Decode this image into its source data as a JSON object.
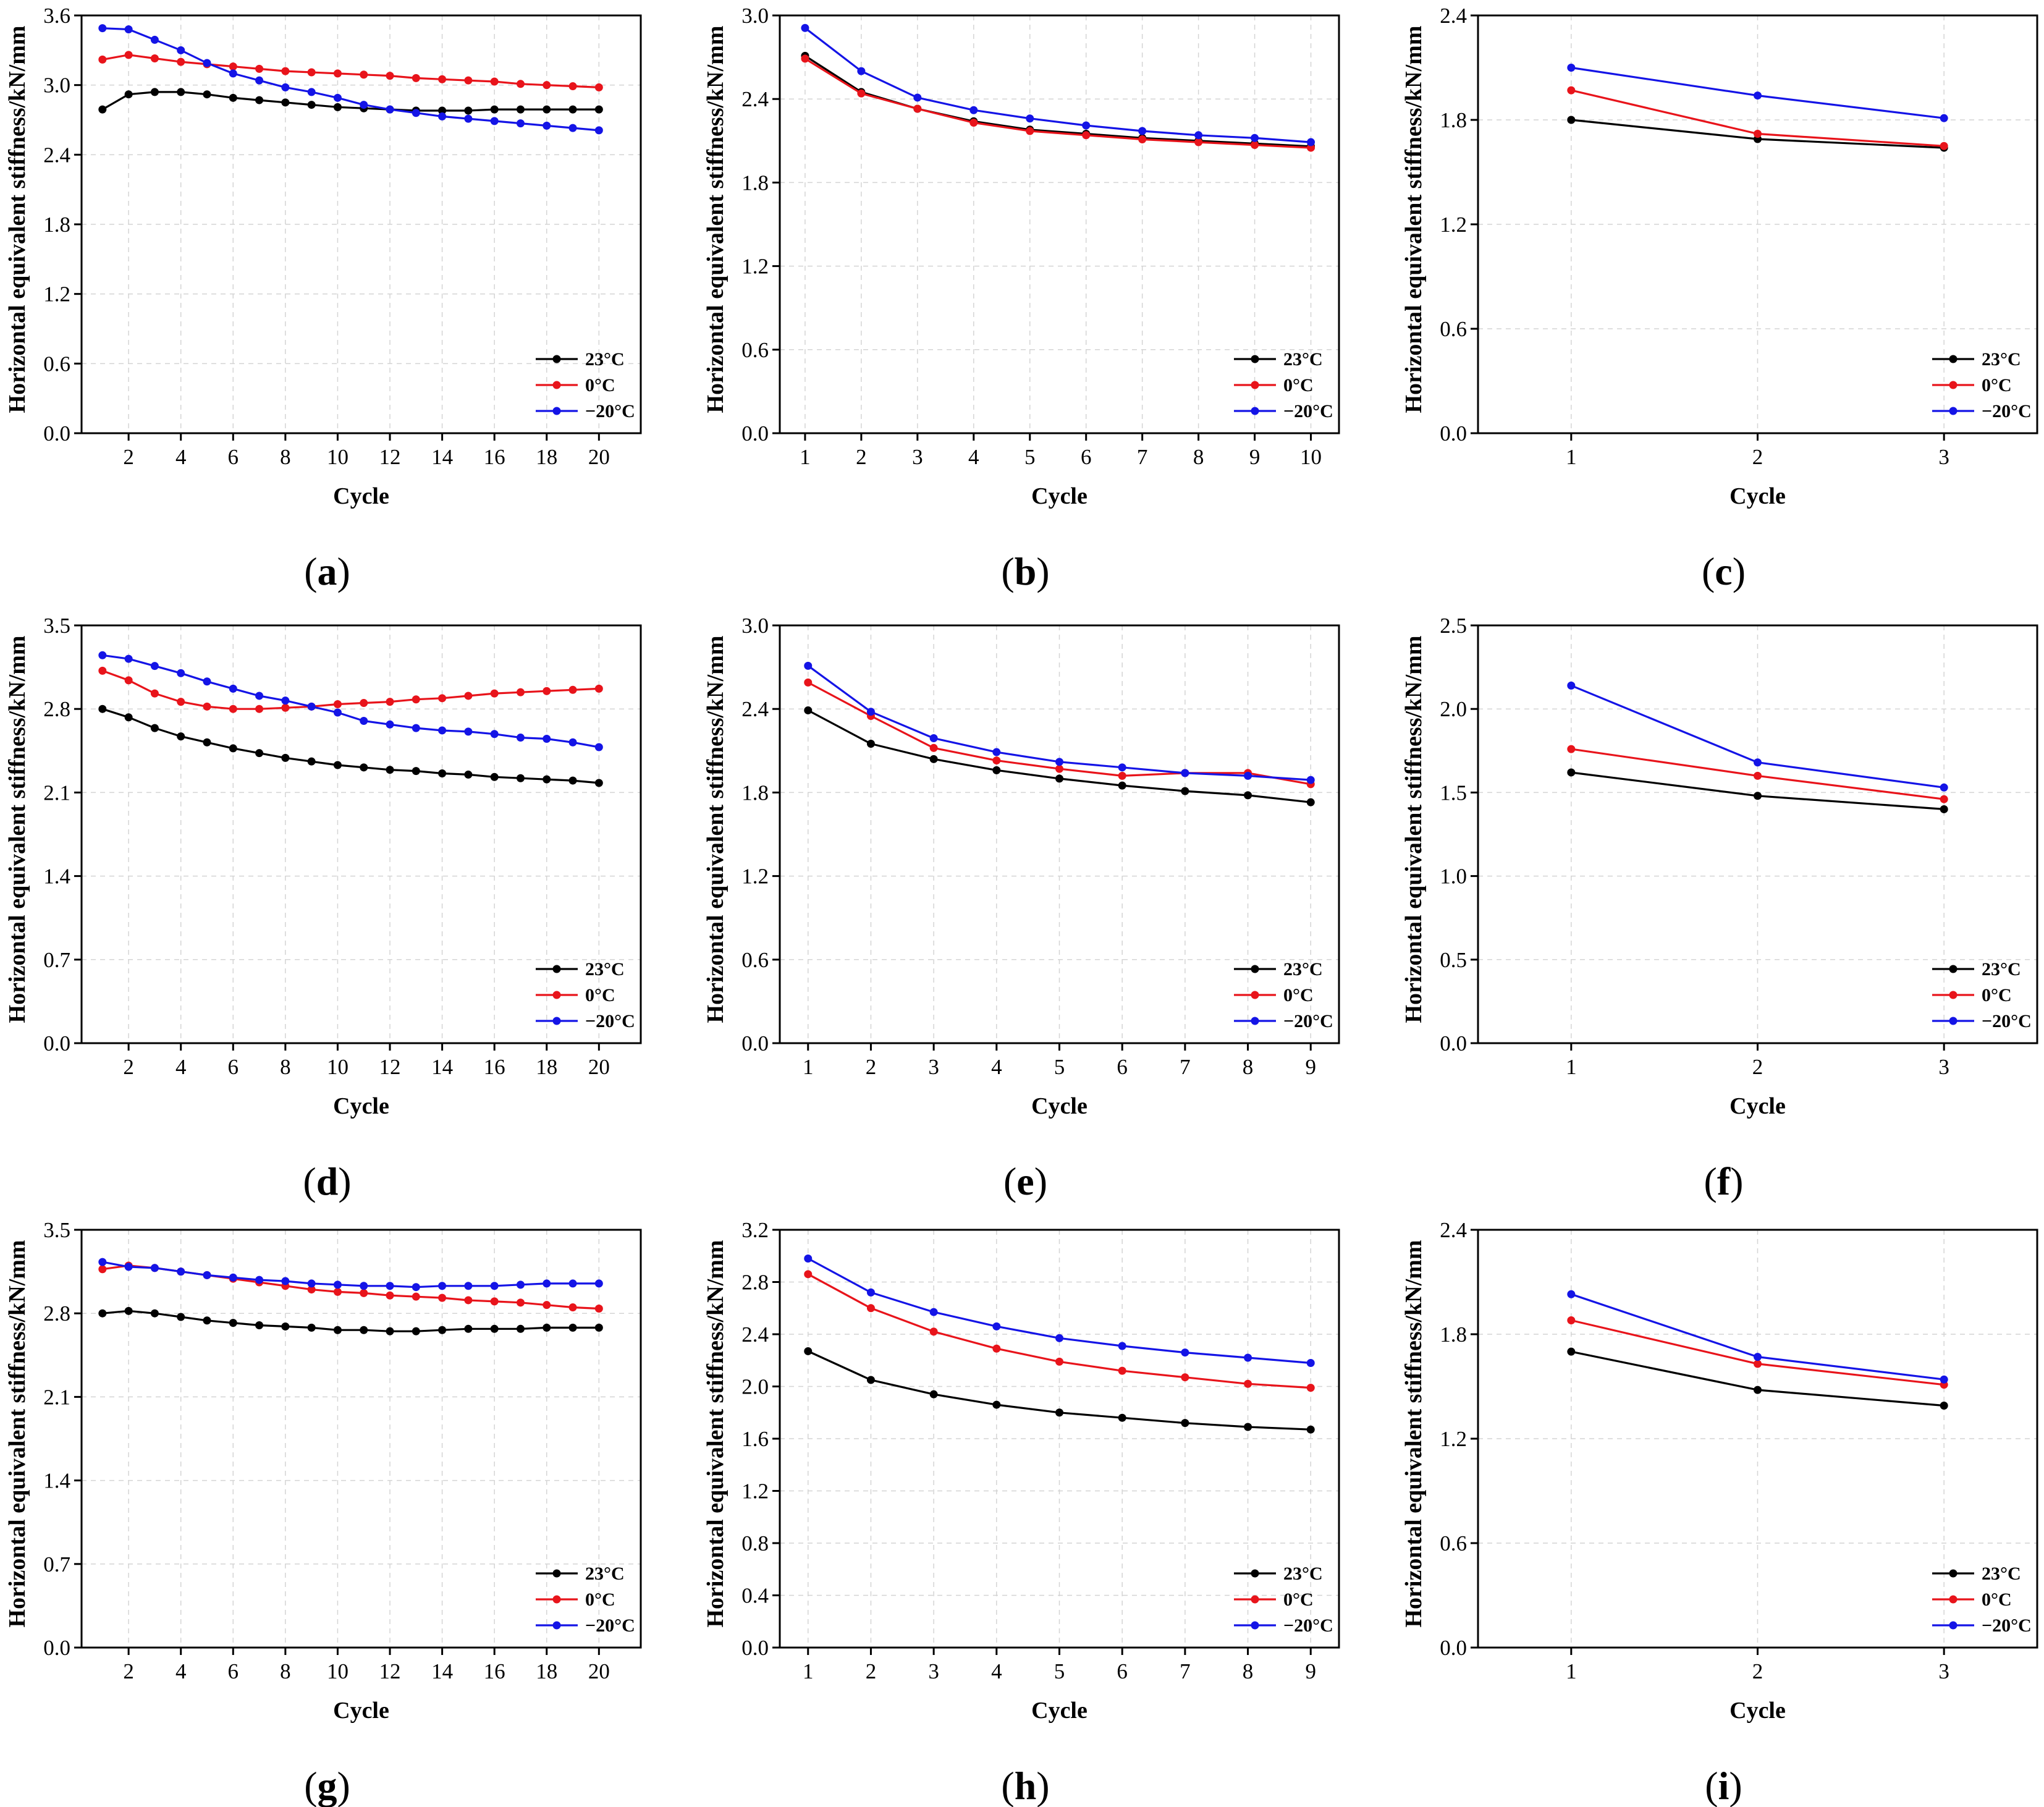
{
  "colors": {
    "23C": "#000000",
    "0C": "#e8141b",
    "-20C": "#1414e6"
  },
  "chart_data": [
    {
      "panel": "a",
      "type": "line",
      "xlabel": "Cycle",
      "ylabel": "Horizontal equivalent stiffness/kN/mm",
      "xlim": [
        0.2,
        21.6
      ],
      "ylim": [
        0,
        3.6
      ],
      "xticks": [
        2,
        4,
        6,
        8,
        10,
        12,
        14,
        16,
        18,
        20
      ],
      "yticks": [
        0.0,
        0.6,
        1.2,
        1.8,
        2.4,
        3.0,
        3.6
      ],
      "ytick_decimals": 1,
      "grid": true,
      "legend": "bottom-right",
      "x": [
        1,
        2,
        3,
        4,
        5,
        6,
        7,
        8,
        9,
        10,
        11,
        12,
        13,
        14,
        15,
        16,
        17,
        18,
        19,
        20
      ],
      "series": [
        {
          "name": "23°C",
          "color_key": "23C",
          "values": [
            2.79,
            2.92,
            2.94,
            2.94,
            2.92,
            2.89,
            2.87,
            2.85,
            2.83,
            2.81,
            2.8,
            2.79,
            2.78,
            2.78,
            2.78,
            2.79,
            2.79,
            2.79,
            2.79,
            2.79
          ]
        },
        {
          "name": "0°C",
          "color_key": "0C",
          "values": [
            3.22,
            3.26,
            3.23,
            3.2,
            3.18,
            3.16,
            3.14,
            3.12,
            3.11,
            3.1,
            3.09,
            3.08,
            3.06,
            3.05,
            3.04,
            3.03,
            3.01,
            3.0,
            2.99,
            2.98
          ]
        },
        {
          "name": "−20°C",
          "color_key": "-20C",
          "values": [
            3.49,
            3.48,
            3.39,
            3.3,
            3.19,
            3.1,
            3.04,
            2.98,
            2.94,
            2.89,
            2.83,
            2.79,
            2.76,
            2.73,
            2.71,
            2.69,
            2.67,
            2.65,
            2.63,
            2.61
          ]
        }
      ]
    },
    {
      "panel": "b",
      "type": "line",
      "xlabel": "Cycle",
      "ylabel": "Horizontal equivalent stiffness/kN/mm",
      "xlim": [
        0.55,
        10.5
      ],
      "ylim": [
        0,
        3.0
      ],
      "xticks": [
        1,
        2,
        3,
        4,
        5,
        6,
        7,
        8,
        9,
        10
      ],
      "yticks": [
        0.0,
        0.6,
        1.2,
        1.8,
        2.4,
        3.0
      ],
      "ytick_decimals": 1,
      "grid": true,
      "legend": "bottom-right",
      "x": [
        1,
        2,
        3,
        4,
        5,
        6,
        7,
        8,
        9,
        10
      ],
      "series": [
        {
          "name": "23°C",
          "color_key": "23C",
          "values": [
            2.71,
            2.45,
            2.33,
            2.24,
            2.18,
            2.15,
            2.12,
            2.1,
            2.08,
            2.06
          ]
        },
        {
          "name": "0°C",
          "color_key": "0C",
          "values": [
            2.69,
            2.44,
            2.33,
            2.23,
            2.17,
            2.14,
            2.11,
            2.09,
            2.07,
            2.05
          ]
        },
        {
          "name": "−20°C",
          "color_key": "-20C",
          "values": [
            2.91,
            2.6,
            2.41,
            2.32,
            2.26,
            2.21,
            2.17,
            2.14,
            2.12,
            2.09
          ]
        }
      ]
    },
    {
      "panel": "c",
      "type": "line",
      "xlabel": "Cycle",
      "ylabel": "Horizontal equivalent stiffness/kN/mm",
      "xlim": [
        0.5,
        3.5
      ],
      "ylim": [
        0,
        2.4
      ],
      "xticks": [
        1,
        2,
        3
      ],
      "yticks": [
        0.0,
        0.6,
        1.2,
        1.8,
        2.4
      ],
      "ytick_decimals": 1,
      "grid": true,
      "legend": "bottom-right",
      "x": [
        1,
        2,
        3
      ],
      "series": [
        {
          "name": "23°C",
          "color_key": "23C",
          "values": [
            1.8,
            1.69,
            1.64
          ]
        },
        {
          "name": "0°C",
          "color_key": "0C",
          "values": [
            1.97,
            1.72,
            1.65
          ]
        },
        {
          "name": "−20°C",
          "color_key": "-20C",
          "values": [
            2.1,
            1.94,
            1.81
          ]
        }
      ]
    },
    {
      "panel": "d",
      "type": "line",
      "xlabel": "Cycle",
      "ylabel": "Horizontal equivalent stiffness/kN/mm",
      "xlim": [
        0.2,
        21.6
      ],
      "ylim": [
        0,
        3.5
      ],
      "xticks": [
        2,
        4,
        6,
        8,
        10,
        12,
        14,
        16,
        18,
        20
      ],
      "yticks": [
        0.0,
        0.7,
        1.4,
        2.1,
        2.8,
        3.5
      ],
      "ytick_decimals": 1,
      "grid": true,
      "legend": "bottom-right",
      "x": [
        1,
        2,
        3,
        4,
        5,
        6,
        7,
        8,
        9,
        10,
        11,
        12,
        13,
        14,
        15,
        16,
        17,
        18,
        19,
        20
      ],
      "series": [
        {
          "name": "23°C",
          "color_key": "23C",
          "values": [
            2.8,
            2.73,
            2.64,
            2.57,
            2.52,
            2.47,
            2.43,
            2.39,
            2.36,
            2.33,
            2.31,
            2.29,
            2.28,
            2.26,
            2.25,
            2.23,
            2.22,
            2.21,
            2.2,
            2.18
          ]
        },
        {
          "name": "0°C",
          "color_key": "0C",
          "values": [
            3.12,
            3.04,
            2.93,
            2.86,
            2.82,
            2.8,
            2.8,
            2.81,
            2.82,
            2.84,
            2.85,
            2.86,
            2.88,
            2.89,
            2.91,
            2.93,
            2.94,
            2.95,
            2.96,
            2.97
          ]
        },
        {
          "name": "−20°C",
          "color_key": "-20C",
          "values": [
            3.25,
            3.22,
            3.16,
            3.1,
            3.03,
            2.97,
            2.91,
            2.87,
            2.82,
            2.77,
            2.7,
            2.67,
            2.64,
            2.62,
            2.61,
            2.59,
            2.56,
            2.55,
            2.52,
            2.48
          ]
        }
      ]
    },
    {
      "panel": "e",
      "type": "line",
      "xlabel": "Cycle",
      "ylabel": "Horizontal equivalent stiffness/kN/mm",
      "xlim": [
        0.55,
        9.45
      ],
      "ylim": [
        0,
        3.0
      ],
      "xticks": [
        1,
        2,
        3,
        4,
        5,
        6,
        7,
        8,
        9
      ],
      "yticks": [
        0.0,
        0.6,
        1.2,
        1.8,
        2.4,
        3.0
      ],
      "ytick_decimals": 1,
      "grid": true,
      "legend": "bottom-right",
      "x": [
        1,
        2,
        3,
        4,
        5,
        6,
        7,
        8,
        9
      ],
      "series": [
        {
          "name": "23°C",
          "color_key": "23C",
          "values": [
            2.39,
            2.15,
            2.04,
            1.96,
            1.9,
            1.85,
            1.81,
            1.78,
            1.73
          ]
        },
        {
          "name": "0°C",
          "color_key": "0C",
          "values": [
            2.59,
            2.35,
            2.12,
            2.03,
            1.97,
            1.92,
            1.94,
            1.94,
            1.86
          ]
        },
        {
          "name": "−20°C",
          "color_key": "-20C",
          "values": [
            2.71,
            2.38,
            2.19,
            2.09,
            2.02,
            1.98,
            1.94,
            1.92,
            1.89
          ]
        }
      ]
    },
    {
      "panel": "f",
      "type": "line",
      "xlabel": "Cycle",
      "ylabel": "Horizontal equivalent stiffness/kN/mm",
      "xlim": [
        0.5,
        3.5
      ],
      "ylim": [
        0,
        2.5
      ],
      "xticks": [
        1,
        2,
        3
      ],
      "yticks": [
        0.0,
        0.5,
        1.0,
        1.5,
        2.0,
        2.5
      ],
      "ytick_decimals": 1,
      "grid": true,
      "legend": "bottom-right",
      "x": [
        1,
        2,
        3
      ],
      "series": [
        {
          "name": "23°C",
          "color_key": "23C",
          "values": [
            1.62,
            1.48,
            1.4
          ]
        },
        {
          "name": "0°C",
          "color_key": "0C",
          "values": [
            1.76,
            1.6,
            1.46
          ]
        },
        {
          "name": "−20°C",
          "color_key": "-20C",
          "values": [
            2.14,
            1.68,
            1.53
          ]
        }
      ]
    },
    {
      "panel": "g",
      "type": "line",
      "xlabel": "Cycle",
      "ylabel": "Horizontal equivalent stiffness/kN/mm",
      "xlim": [
        0.2,
        21.6
      ],
      "ylim": [
        0,
        3.5
      ],
      "xticks": [
        2,
        4,
        6,
        8,
        10,
        12,
        14,
        16,
        18,
        20
      ],
      "yticks": [
        0.0,
        0.7,
        1.4,
        2.1,
        2.8,
        3.5
      ],
      "ytick_decimals": 1,
      "grid": true,
      "legend": "bottom-right",
      "x": [
        1,
        2,
        3,
        4,
        5,
        6,
        7,
        8,
        9,
        10,
        11,
        12,
        13,
        14,
        15,
        16,
        17,
        18,
        19,
        20
      ],
      "series": [
        {
          "name": "23°C",
          "color_key": "23C",
          "values": [
            2.8,
            2.82,
            2.8,
            2.77,
            2.74,
            2.72,
            2.7,
            2.69,
            2.68,
            2.66,
            2.66,
            2.65,
            2.65,
            2.66,
            2.67,
            2.67,
            2.67,
            2.68,
            2.68,
            2.68
          ]
        },
        {
          "name": "0°C",
          "color_key": "0C",
          "values": [
            3.17,
            3.2,
            3.18,
            3.15,
            3.12,
            3.09,
            3.06,
            3.03,
            3.0,
            2.98,
            2.97,
            2.95,
            2.94,
            2.93,
            2.91,
            2.9,
            2.89,
            2.87,
            2.85,
            2.84
          ]
        },
        {
          "name": "−20°C",
          "color_key": "-20C",
          "values": [
            3.23,
            3.19,
            3.18,
            3.15,
            3.12,
            3.1,
            3.08,
            3.07,
            3.05,
            3.04,
            3.03,
            3.03,
            3.02,
            3.03,
            3.03,
            3.03,
            3.04,
            3.05,
            3.05,
            3.05
          ]
        }
      ]
    },
    {
      "panel": "h",
      "type": "line",
      "xlabel": "Cycle",
      "ylabel": "Horizontal equivalent stiffness/kN/mm",
      "xlim": [
        0.55,
        9.45
      ],
      "ylim": [
        0,
        3.2
      ],
      "xticks": [
        1,
        2,
        3,
        4,
        5,
        6,
        7,
        8,
        9
      ],
      "yticks": [
        0.0,
        0.4,
        0.8,
        1.2,
        1.6,
        2.0,
        2.4,
        2.8,
        3.2
      ],
      "ytick_decimals": 1,
      "grid": true,
      "legend": "bottom-right",
      "x": [
        1,
        2,
        3,
        4,
        5,
        6,
        7,
        8,
        9
      ],
      "series": [
        {
          "name": "23°C",
          "color_key": "23C",
          "values": [
            2.27,
            2.05,
            1.94,
            1.86,
            1.8,
            1.76,
            1.72,
            1.69,
            1.67
          ]
        },
        {
          "name": "0°C",
          "color_key": "0C",
          "values": [
            2.86,
            2.6,
            2.42,
            2.29,
            2.19,
            2.12,
            2.07,
            2.02,
            1.99
          ]
        },
        {
          "name": "−20°C",
          "color_key": "-20C",
          "values": [
            2.98,
            2.72,
            2.57,
            2.46,
            2.37,
            2.31,
            2.26,
            2.22,
            2.18
          ]
        }
      ]
    },
    {
      "panel": "i",
      "type": "line",
      "xlabel": "Cycle",
      "ylabel": "Horizontal equivalent stiffness/kN/mm",
      "xlim": [
        0.5,
        3.5
      ],
      "ylim": [
        0,
        2.4
      ],
      "xticks": [
        1,
        2,
        3
      ],
      "yticks": [
        0.0,
        0.6,
        1.2,
        1.8,
        2.4
      ],
      "ytick_decimals": 1,
      "grid": true,
      "legend": "bottom-right",
      "x": [
        1,
        2,
        3
      ],
      "series": [
        {
          "name": "23°C",
          "color_key": "23C",
          "values": [
            1.7,
            1.48,
            1.39
          ]
        },
        {
          "name": "0°C",
          "color_key": "0C",
          "values": [
            1.88,
            1.63,
            1.51
          ]
        },
        {
          "name": "−20°C",
          "color_key": "-20C",
          "values": [
            2.03,
            1.67,
            1.54
          ]
        }
      ]
    }
  ]
}
